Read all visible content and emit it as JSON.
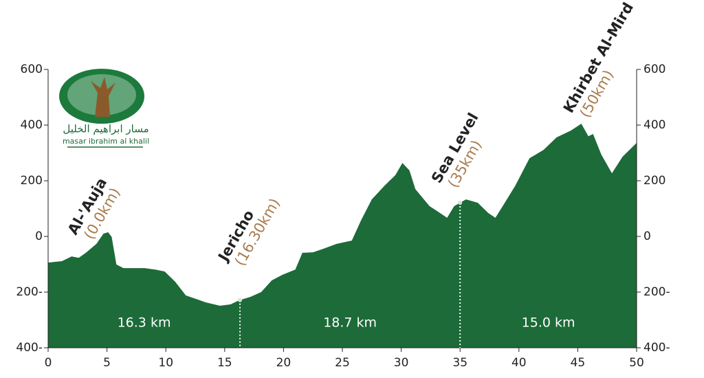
{
  "chart_data": {
    "type": "area",
    "color": "#1c6b38",
    "logo": {
      "arabic": "مسار ابراهيم الخليل",
      "latin": "masar ibrahim al khalil"
    },
    "x": [
      0,
      1.17,
      2.0,
      2.6,
      3.2,
      4.1,
      4.7,
      5.1,
      5.4,
      5.8,
      6.4,
      7.3,
      8.2,
      9.1,
      9.9,
      10.8,
      11.7,
      12.6,
      13.4,
      14.6,
      15.5,
      16.2,
      17.2,
      18.1,
      19.0,
      19.9,
      21.0,
      21.6,
      22.5,
      23.4,
      24.5,
      25.8,
      26.6,
      27.5,
      28.6,
      29.5,
      30.1,
      30.7,
      31.2,
      32.4,
      33.3,
      33.9,
      34.5,
      35.5,
      36.5,
      37.4,
      38.0,
      38.8,
      39.7,
      40.9,
      42.1,
      43.2,
      44.4,
      45.3,
      45.9,
      46.3,
      47.0,
      47.9,
      48.8,
      50
    ],
    "values": [
      -94,
      -89,
      -72,
      -77,
      -59,
      -27,
      10,
      15,
      -2,
      -101,
      -114,
      -114,
      -114,
      -119,
      -126,
      -163,
      -212,
      -225,
      -237,
      -249,
      -244,
      -230,
      -217,
      -200,
      -158,
      -138,
      -119,
      -59,
      -57,
      -44,
      -27,
      -15,
      59,
      133,
      183,
      220,
      264,
      237,
      170,
      109,
      84,
      67,
      109,
      133,
      121,
      84,
      67,
      121,
      183,
      281,
      311,
      356,
      380,
      405,
      360,
      368,
      294,
      227,
      286,
      336
    ],
    "xlim": [
      0,
      50
    ],
    "xticks": [
      0,
      5,
      10,
      15,
      20,
      25,
      30,
      35,
      40,
      45,
      50
    ],
    "ylim": [
      -400,
      600
    ],
    "yticks": [
      600,
      400,
      200,
      0,
      {
        "value": -200,
        "label": "200-"
      },
      {
        "value": -400,
        "label": "400-"
      }
    ],
    "waypoints": [
      {
        "x": 0,
        "name": "Al-'Auja",
        "distance": "(0.0km)"
      },
      {
        "x": 16.3,
        "name": "Jericho",
        "distance": "(16.30km)"
      },
      {
        "x": 35,
        "name": "Sea Level",
        "distance": "(35km)"
      },
      {
        "x": 50,
        "name": "Khirbet Al-Mird",
        "distance": "(50km)"
      }
    ],
    "segments": [
      {
        "from": 0,
        "to": 16.3,
        "label": "16.3 km"
      },
      {
        "from": 16.3,
        "to": 35,
        "label": "18.7 km"
      },
      {
        "from": 35,
        "to": 50,
        "label": "15.0 km"
      }
    ]
  }
}
